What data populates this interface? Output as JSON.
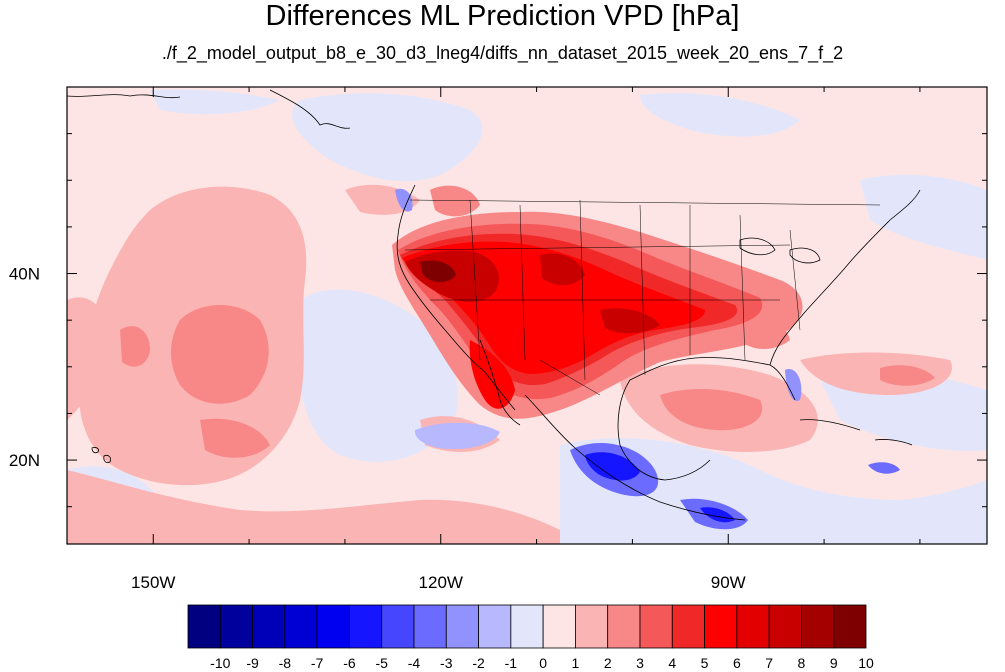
{
  "title": "Differences ML Prediction VPD [hPa]",
  "subtitle": "./f_2_model_output_b8_e_30_d3_lneg4/diffs_nn_dataset_2015_week_20_ens_7_f_2",
  "map": {
    "projection": "cylindrical-equidistant",
    "lon_range": [
      -159,
      -63
    ],
    "lat_range": [
      11,
      60
    ],
    "x_ticks": [
      {
        "value": -150,
        "label": "150W"
      },
      {
        "value": -120,
        "label": "120W"
      },
      {
        "value": -90,
        "label": "90W"
      }
    ],
    "y_ticks": [
      {
        "value": 20,
        "label": "20N"
      },
      {
        "value": 40,
        "label": "40N"
      }
    ],
    "features": [
      "coastlines",
      "us-state-boundaries",
      "country-borders"
    ]
  },
  "colorbar": {
    "labels": [
      "-10",
      "-9",
      "-8",
      "-7",
      "-6",
      "-5",
      "-4",
      "-3",
      "-2",
      "-1",
      "0",
      "1",
      "2",
      "3",
      "4",
      "5",
      "6",
      "7",
      "8",
      "9",
      "10"
    ],
    "colors": [
      "#000080",
      "#00009c",
      "#0000b8",
      "#0000d4",
      "#0000f0",
      "#1515ff",
      "#4646ff",
      "#6b6bff",
      "#9292ff",
      "#b8b8ff",
      "#e3e6fa",
      "#fde5e5",
      "#fbb4b4",
      "#f88888",
      "#f45858",
      "#f12828",
      "#ff0000",
      "#e20000",
      "#c80000",
      "#a50000",
      "#7f0000"
    ]
  }
}
